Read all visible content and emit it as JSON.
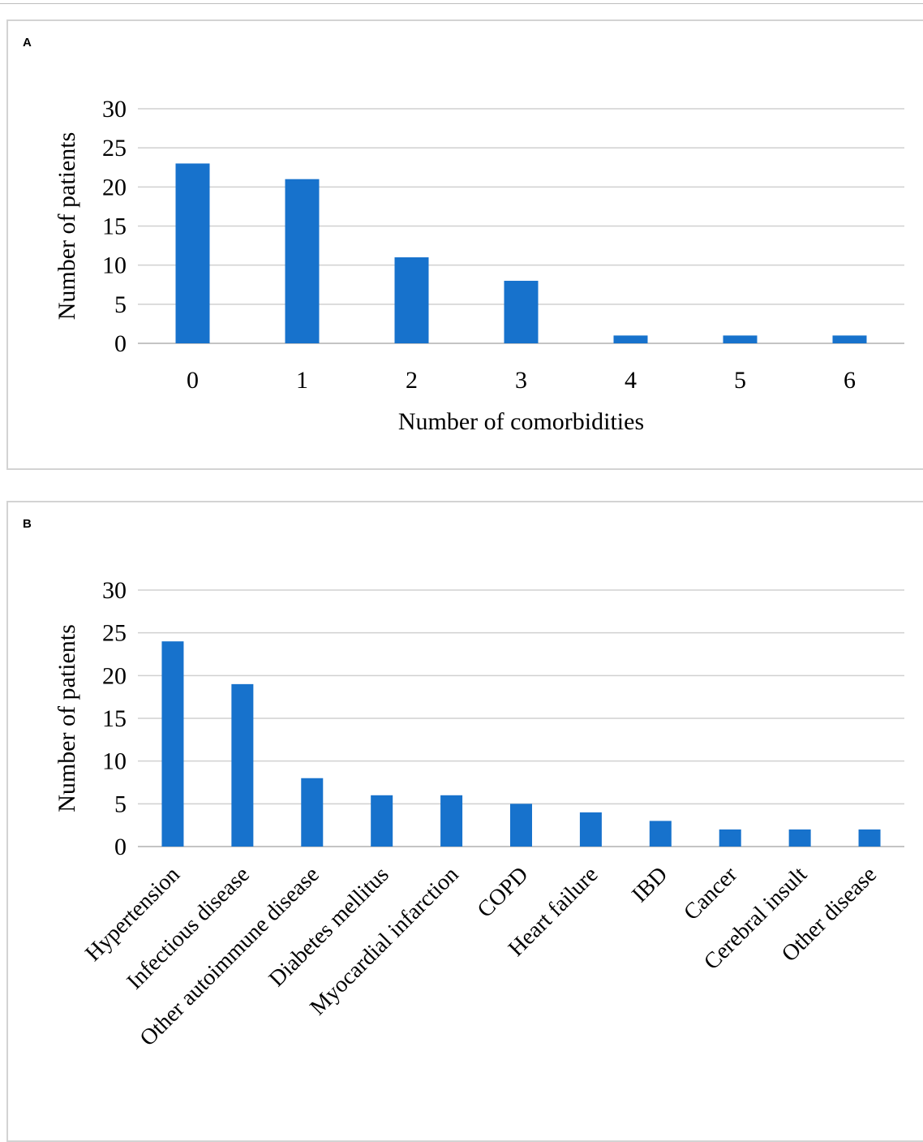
{
  "colors": {
    "bar": "#1772cc",
    "grid": "#d0d0d0",
    "axis": "#b0b0b0"
  },
  "chart_data": [
    {
      "panel_label": "A",
      "type": "bar",
      "categories": [
        "0",
        "1",
        "2",
        "3",
        "4",
        "5",
        "6"
      ],
      "values": [
        23,
        21,
        11,
        8,
        1,
        1,
        1
      ],
      "xlabel": "Number of comorbidities",
      "ylabel": "Number of patients",
      "ylim": [
        0,
        30
      ],
      "yticks": [
        0,
        5,
        10,
        15,
        20,
        25,
        30
      ],
      "grid": true,
      "legend": "none"
    },
    {
      "panel_label": "B",
      "type": "bar",
      "categories": [
        "Hypertension",
        "Infectious disease",
        "Other autoimmune disease",
        "Diabetes mellitus",
        "Myocardial infarction",
        "COPD",
        "Heart failure",
        "IBD",
        "Cancer",
        "Cerebral insult",
        "Other disease"
      ],
      "values": [
        24,
        19,
        8,
        6,
        6,
        5,
        4,
        3,
        2,
        2,
        2
      ],
      "xlabel": "",
      "ylabel": "Number of patients",
      "ylim": [
        0,
        30
      ],
      "yticks": [
        0,
        5,
        10,
        15,
        20,
        25,
        30
      ],
      "grid": true,
      "legend": "none"
    }
  ]
}
